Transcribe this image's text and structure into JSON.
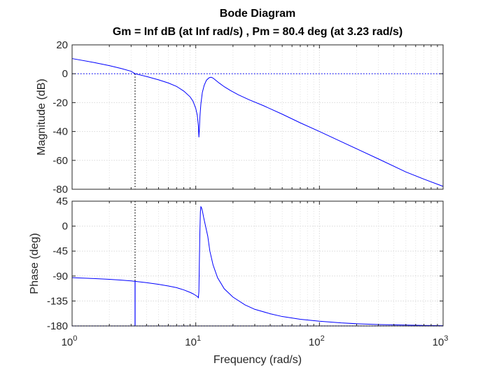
{
  "figure": {
    "title_line1": "Bode Diagram",
    "title_line2": "Gm = Inf dB (at Inf rad/s) ,  Pm = 80.4 deg (at 3.23 rad/s)"
  },
  "colors": {
    "curve": "#0000ff",
    "grid": "#d9d9d9",
    "axes": "#262626",
    "marker": "#0000ff"
  },
  "chart_data": [
    {
      "type": "line",
      "panel": "magnitude",
      "title": "Bode Diagram",
      "xlabel": "",
      "ylabel": "Magnitude (dB)",
      "xscale": "log",
      "xlim": [
        1,
        1000
      ],
      "ylim": [
        -80,
        20
      ],
      "yticks": [
        20,
        0,
        -20,
        -40,
        -60,
        -80
      ],
      "grid": true,
      "reference_line_y": 0,
      "crossover_frequency": 3.23,
      "series": [
        {
          "x": [
            1,
            1.5,
            2,
            2.5,
            3,
            3.23,
            4,
            5,
            6,
            7,
            8,
            9,
            9.5,
            10,
            10.3,
            10.5,
            10.6,
            10.7,
            10.8,
            11,
            11.3,
            11.7,
            12.2,
            12.8,
            13.3,
            13.8,
            14.5,
            15.5,
            17,
            19,
            22,
            27,
            35,
            50,
            70,
            100,
            150,
            200,
            300,
            500,
            700,
            1000
          ],
          "y": [
            10.5,
            7.8,
            5.6,
            3.6,
            1.7,
            0.0,
            -1.9,
            -4.2,
            -6.4,
            -8.8,
            -12,
            -16,
            -19,
            -24,
            -29,
            -36,
            -44,
            -38,
            -30,
            -21,
            -13,
            -8,
            -4.5,
            -2.8,
            -2.4,
            -3.0,
            -4.5,
            -6.5,
            -9.0,
            -11.5,
            -14.5,
            -18,
            -22,
            -28,
            -34,
            -40,
            -47,
            -52,
            -59,
            -68,
            -73,
            -78
          ]
        }
      ]
    },
    {
      "type": "line",
      "panel": "phase",
      "xlabel": "Frequency  (rad/s)",
      "ylabel": "Phase (deg)",
      "xscale": "log",
      "xlim": [
        1,
        1000
      ],
      "ylim": [
        -180,
        45
      ],
      "xtick_labels": [
        "10^0",
        "10^1",
        "10^2",
        "10^3"
      ],
      "yticks": [
        45,
        0,
        -45,
        -90,
        -135,
        -180
      ],
      "grid": true,
      "reference_line_y": -180,
      "phase_margin_deg": 80.4,
      "series": [
        {
          "x": [
            1,
            1.5,
            2,
            2.5,
            3,
            3.23,
            4,
            5,
            6,
            7,
            8,
            9,
            9.5,
            10,
            10.3,
            10.5,
            10.6,
            10.7,
            10.8,
            10.9,
            11.0,
            11.1,
            11.3,
            11.6,
            12.0,
            12.5,
            13.0,
            13.8,
            15,
            17,
            20,
            25,
            30,
            40,
            50,
            70,
            100,
            150,
            200,
            300,
            500,
            700,
            1000
          ],
          "y": [
            -93,
            -94.5,
            -96,
            -97.4,
            -98.8,
            -99.6,
            -102,
            -105,
            -108,
            -111,
            -115,
            -119.5,
            -122,
            -125,
            -127,
            -129,
            -118,
            -60,
            -10,
            26,
            35,
            34,
            28,
            15,
            0,
            -18,
            -45,
            -70,
            -93,
            -113,
            -128,
            -142,
            -150,
            -158,
            -163,
            -168,
            -171.5,
            -174.5,
            -176,
            -177.5,
            -178.5,
            -179,
            -179.5
          ]
        }
      ]
    }
  ]
}
